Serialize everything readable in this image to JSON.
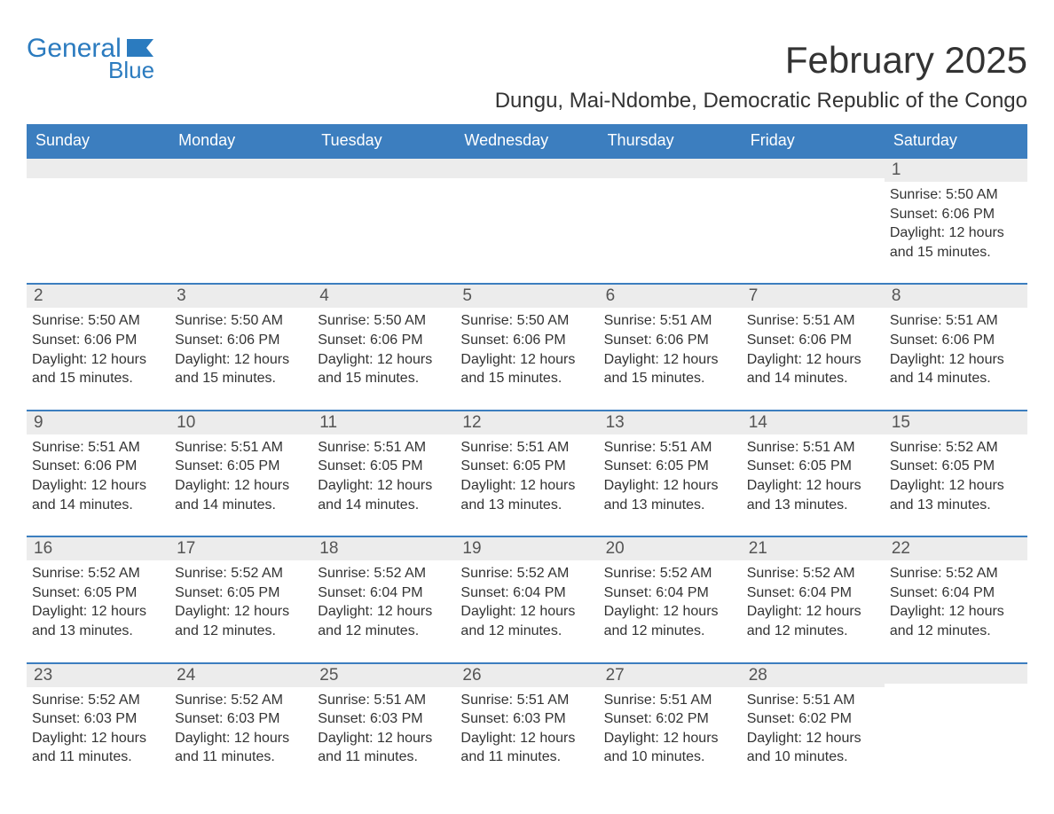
{
  "logo": {
    "text1": "General",
    "text2": "Blue",
    "flag_color": "#2b7bbf"
  },
  "title": "February 2025",
  "subtitle": "Dungu, Mai-Ndombe, Democratic Republic of the Congo",
  "colors": {
    "header_bg": "#3c7ebf",
    "header_text": "#ffffff",
    "daynum_bg": "#ececec",
    "border": "#3c7ebf",
    "text": "#333333"
  },
  "weekdays": [
    "Sunday",
    "Monday",
    "Tuesday",
    "Wednesday",
    "Thursday",
    "Friday",
    "Saturday"
  ],
  "weeks": [
    [
      null,
      null,
      null,
      null,
      null,
      null,
      {
        "n": "1",
        "sunrise": "Sunrise: 5:50 AM",
        "sunset": "Sunset: 6:06 PM",
        "d1": "Daylight: 12 hours",
        "d2": "and 15 minutes."
      }
    ],
    [
      {
        "n": "2",
        "sunrise": "Sunrise: 5:50 AM",
        "sunset": "Sunset: 6:06 PM",
        "d1": "Daylight: 12 hours",
        "d2": "and 15 minutes."
      },
      {
        "n": "3",
        "sunrise": "Sunrise: 5:50 AM",
        "sunset": "Sunset: 6:06 PM",
        "d1": "Daylight: 12 hours",
        "d2": "and 15 minutes."
      },
      {
        "n": "4",
        "sunrise": "Sunrise: 5:50 AM",
        "sunset": "Sunset: 6:06 PM",
        "d1": "Daylight: 12 hours",
        "d2": "and 15 minutes."
      },
      {
        "n": "5",
        "sunrise": "Sunrise: 5:50 AM",
        "sunset": "Sunset: 6:06 PM",
        "d1": "Daylight: 12 hours",
        "d2": "and 15 minutes."
      },
      {
        "n": "6",
        "sunrise": "Sunrise: 5:51 AM",
        "sunset": "Sunset: 6:06 PM",
        "d1": "Daylight: 12 hours",
        "d2": "and 15 minutes."
      },
      {
        "n": "7",
        "sunrise": "Sunrise: 5:51 AM",
        "sunset": "Sunset: 6:06 PM",
        "d1": "Daylight: 12 hours",
        "d2": "and 14 minutes."
      },
      {
        "n": "8",
        "sunrise": "Sunrise: 5:51 AM",
        "sunset": "Sunset: 6:06 PM",
        "d1": "Daylight: 12 hours",
        "d2": "and 14 minutes."
      }
    ],
    [
      {
        "n": "9",
        "sunrise": "Sunrise: 5:51 AM",
        "sunset": "Sunset: 6:06 PM",
        "d1": "Daylight: 12 hours",
        "d2": "and 14 minutes."
      },
      {
        "n": "10",
        "sunrise": "Sunrise: 5:51 AM",
        "sunset": "Sunset: 6:05 PM",
        "d1": "Daylight: 12 hours",
        "d2": "and 14 minutes."
      },
      {
        "n": "11",
        "sunrise": "Sunrise: 5:51 AM",
        "sunset": "Sunset: 6:05 PM",
        "d1": "Daylight: 12 hours",
        "d2": "and 14 minutes."
      },
      {
        "n": "12",
        "sunrise": "Sunrise: 5:51 AM",
        "sunset": "Sunset: 6:05 PM",
        "d1": "Daylight: 12 hours",
        "d2": "and 13 minutes."
      },
      {
        "n": "13",
        "sunrise": "Sunrise: 5:51 AM",
        "sunset": "Sunset: 6:05 PM",
        "d1": "Daylight: 12 hours",
        "d2": "and 13 minutes."
      },
      {
        "n": "14",
        "sunrise": "Sunrise: 5:51 AM",
        "sunset": "Sunset: 6:05 PM",
        "d1": "Daylight: 12 hours",
        "d2": "and 13 minutes."
      },
      {
        "n": "15",
        "sunrise": "Sunrise: 5:52 AM",
        "sunset": "Sunset: 6:05 PM",
        "d1": "Daylight: 12 hours",
        "d2": "and 13 minutes."
      }
    ],
    [
      {
        "n": "16",
        "sunrise": "Sunrise: 5:52 AM",
        "sunset": "Sunset: 6:05 PM",
        "d1": "Daylight: 12 hours",
        "d2": "and 13 minutes."
      },
      {
        "n": "17",
        "sunrise": "Sunrise: 5:52 AM",
        "sunset": "Sunset: 6:05 PM",
        "d1": "Daylight: 12 hours",
        "d2": "and 12 minutes."
      },
      {
        "n": "18",
        "sunrise": "Sunrise: 5:52 AM",
        "sunset": "Sunset: 6:04 PM",
        "d1": "Daylight: 12 hours",
        "d2": "and 12 minutes."
      },
      {
        "n": "19",
        "sunrise": "Sunrise: 5:52 AM",
        "sunset": "Sunset: 6:04 PM",
        "d1": "Daylight: 12 hours",
        "d2": "and 12 minutes."
      },
      {
        "n": "20",
        "sunrise": "Sunrise: 5:52 AM",
        "sunset": "Sunset: 6:04 PM",
        "d1": "Daylight: 12 hours",
        "d2": "and 12 minutes."
      },
      {
        "n": "21",
        "sunrise": "Sunrise: 5:52 AM",
        "sunset": "Sunset: 6:04 PM",
        "d1": "Daylight: 12 hours",
        "d2": "and 12 minutes."
      },
      {
        "n": "22",
        "sunrise": "Sunrise: 5:52 AM",
        "sunset": "Sunset: 6:04 PM",
        "d1": "Daylight: 12 hours",
        "d2": "and 12 minutes."
      }
    ],
    [
      {
        "n": "23",
        "sunrise": "Sunrise: 5:52 AM",
        "sunset": "Sunset: 6:03 PM",
        "d1": "Daylight: 12 hours",
        "d2": "and 11 minutes."
      },
      {
        "n": "24",
        "sunrise": "Sunrise: 5:52 AM",
        "sunset": "Sunset: 6:03 PM",
        "d1": "Daylight: 12 hours",
        "d2": "and 11 minutes."
      },
      {
        "n": "25",
        "sunrise": "Sunrise: 5:51 AM",
        "sunset": "Sunset: 6:03 PM",
        "d1": "Daylight: 12 hours",
        "d2": "and 11 minutes."
      },
      {
        "n": "26",
        "sunrise": "Sunrise: 5:51 AM",
        "sunset": "Sunset: 6:03 PM",
        "d1": "Daylight: 12 hours",
        "d2": "and 11 minutes."
      },
      {
        "n": "27",
        "sunrise": "Sunrise: 5:51 AM",
        "sunset": "Sunset: 6:02 PM",
        "d1": "Daylight: 12 hours",
        "d2": "and 10 minutes."
      },
      {
        "n": "28",
        "sunrise": "Sunrise: 5:51 AM",
        "sunset": "Sunset: 6:02 PM",
        "d1": "Daylight: 12 hours",
        "d2": "and 10 minutes."
      },
      null
    ]
  ]
}
